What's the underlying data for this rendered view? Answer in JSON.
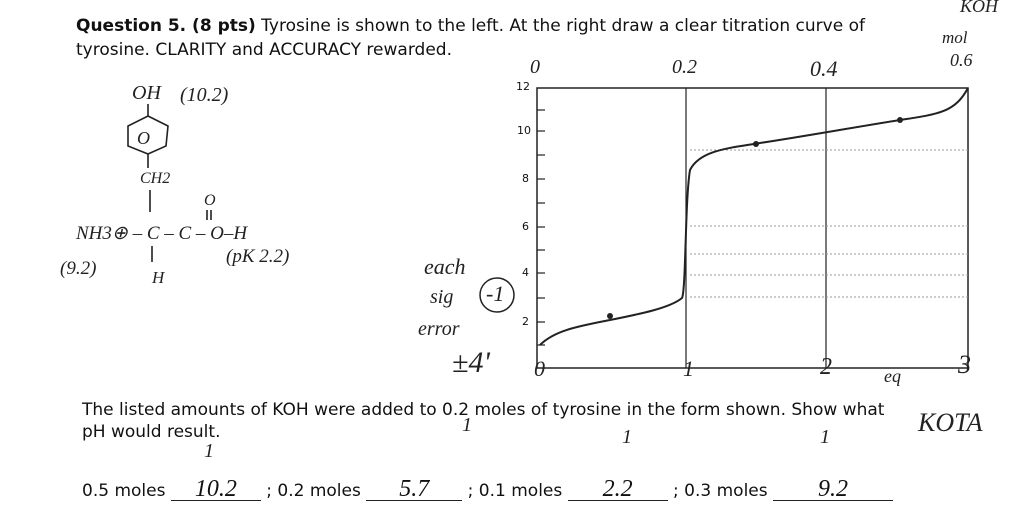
{
  "question": {
    "label": "Question 5.  (8 pts)",
    "text_line1": "Tyrosine is shown to the left.  At the right draw a clear titration curve of",
    "text_line2": "tyrosine.  CLARITY and ACCURACY rewarded."
  },
  "structure": {
    "hydroxyl": "OH",
    "hydroxyl_pk": "(10.2)",
    "ring": "O",
    "methylene": "CH2",
    "carbonyl_o": "O",
    "backbone": "NH3⊕ – C – C – O–H",
    "amine_pk": "(9.2)",
    "alpha_h": "H",
    "acid_pk": "(pK 2.2)"
  },
  "graph": {
    "y_labels": [
      "12",
      "10",
      "8",
      "6",
      "4",
      "2"
    ],
    "x_top_labels": [
      "0",
      "0.2",
      "0.4",
      "0.6"
    ],
    "x_top_unit_1": "KOH",
    "x_top_unit_2": "mol",
    "x_bottom_labels": [
      "0",
      "1",
      "2",
      "3"
    ],
    "x_bottom_unit": "eq"
  },
  "grading": {
    "note_1": "each",
    "note_2": "sig",
    "note_3": "error",
    "deduction": "-1",
    "score": "±4'"
  },
  "part2": {
    "text_line1": "The listed  amounts of KOH were added to 0.2 moles of tyrosine in the form shown.  Show what",
    "text_line2": "pH would result.",
    "side_note": "KOTA",
    "answers": [
      {
        "amount": "0.5 moles",
        "answer": "10.2",
        "mark": "1"
      },
      {
        "amount": "; 0.2 moles",
        "answer": "5.7",
        "mark": "1"
      },
      {
        "amount": "; 0.1 moles",
        "answer": "2.2",
        "mark": "1"
      },
      {
        "amount": "; 0.3 moles",
        "answer": "9.2",
        "mark": "1"
      }
    ]
  }
}
